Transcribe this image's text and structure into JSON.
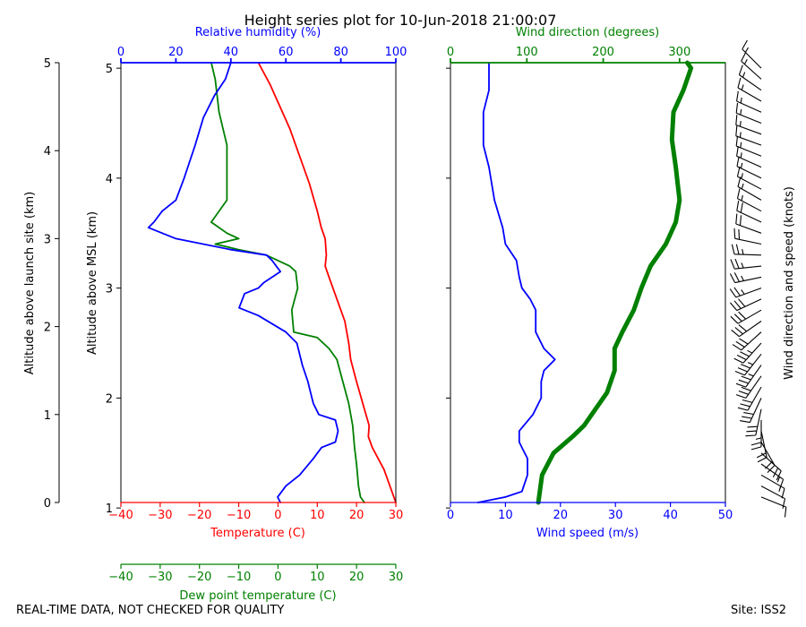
{
  "footer": {
    "quality_note": "REAL-TIME DATA, NOT CHECKED FOR QUALITY",
    "site": "Site: ISS2"
  },
  "colors": {
    "temperature": "#ff0000",
    "dewpoint": "#008000",
    "humidity": "#0000ff",
    "wind_speed": "#0000ff",
    "wind_direction": "#008000",
    "barbs": "#000000"
  },
  "chart_data": [
    {
      "type": "line",
      "title": "Height series plot for 10-Jun-2018 21:00:07",
      "ylabel": "Altitude above MSL (km)",
      "ylim": [
        1.05,
        5.05
      ],
      "yticks": [
        1,
        2,
        3,
        4,
        5
      ],
      "ylabel_outer": "Altitude above launch site (km)",
      "ylim_outer": [
        0,
        5
      ],
      "yticks_outer": [
        0,
        1,
        2,
        3,
        4,
        5
      ],
      "axes": {
        "temperature": {
          "label": "Temperature (C)",
          "lim": [
            -40,
            30
          ],
          "ticks": [
            -40,
            -30,
            -20,
            -10,
            0,
            10,
            20,
            30
          ]
        },
        "dewpoint": {
          "label": "Dew point temperature (C)",
          "lim": [
            -40,
            30
          ],
          "ticks": [
            -40,
            -30,
            -20,
            -10,
            0,
            10,
            20,
            30
          ]
        },
        "humidity": {
          "label": "Relative humidity (%)",
          "lim": [
            0,
            100
          ],
          "ticks": [
            0,
            20,
            40,
            60,
            80,
            100
          ]
        }
      },
      "series": [
        {
          "name": "Temperature",
          "axis": "temperature",
          "points": [
            [
              30,
              1.05
            ],
            [
              27,
              1.35
            ],
            [
              24,
              1.55
            ],
            [
              23,
              1.65
            ],
            [
              23.2,
              1.75
            ],
            [
              22,
              1.9
            ],
            [
              20,
              2.15
            ],
            [
              18.5,
              2.35
            ],
            [
              18,
              2.5
            ],
            [
              17,
              2.7
            ],
            [
              15,
              2.9
            ],
            [
              13,
              3.1
            ],
            [
              12,
              3.2
            ],
            [
              12.3,
              3.3
            ],
            [
              12,
              3.45
            ],
            [
              11,
              3.55
            ],
            [
              10,
              3.7
            ],
            [
              8,
              3.95
            ],
            [
              3,
              4.45
            ],
            [
              -2,
              4.85
            ],
            [
              -5,
              5.05
            ]
          ]
        },
        {
          "name": "Dew point",
          "axis": "dewpoint",
          "points": [
            [
              22,
              1.05
            ],
            [
              21,
              1.1
            ],
            [
              20.5,
              1.2
            ],
            [
              20,
              1.4
            ],
            [
              19.5,
              1.55
            ],
            [
              19,
              1.75
            ],
            [
              18,
              1.95
            ],
            [
              16.5,
              2.15
            ],
            [
              15,
              2.35
            ],
            [
              13,
              2.45
            ],
            [
              10,
              2.55
            ],
            [
              4,
              2.6
            ],
            [
              3.5,
              2.8
            ],
            [
              5,
              3.0
            ],
            [
              4.5,
              3.15
            ],
            [
              3,
              3.2
            ],
            [
              -3,
              3.3
            ],
            [
              -10,
              3.35
            ],
            [
              -16,
              3.4
            ],
            [
              -10,
              3.45
            ],
            [
              -13,
              3.5
            ],
            [
              -17,
              3.6
            ],
            [
              -13,
              3.8
            ],
            [
              -13,
              4.3
            ],
            [
              -15,
              4.6
            ],
            [
              -16,
              4.9
            ],
            [
              -17,
              5.05
            ]
          ]
        },
        {
          "name": "Relative humidity",
          "axis": "humidity",
          "points": [
            [
              58,
              1.05
            ],
            [
              57,
              1.1
            ],
            [
              60,
              1.2
            ],
            [
              65,
              1.3
            ],
            [
              70,
              1.45
            ],
            [
              73,
              1.55
            ],
            [
              78,
              1.6
            ],
            [
              79,
              1.7
            ],
            [
              78,
              1.8
            ],
            [
              72,
              1.85
            ],
            [
              70,
              1.95
            ],
            [
              69,
              2.05
            ],
            [
              68,
              2.15
            ],
            [
              66,
              2.3
            ],
            [
              64,
              2.5
            ],
            [
              60,
              2.6
            ],
            [
              50,
              2.75
            ],
            [
              43,
              2.82
            ],
            [
              45,
              2.95
            ],
            [
              50,
              3.0
            ],
            [
              52,
              3.05
            ],
            [
              58,
              3.15
            ],
            [
              55,
              3.25
            ],
            [
              53,
              3.3
            ],
            [
              40,
              3.35
            ],
            [
              20,
              3.45
            ],
            [
              15,
              3.5
            ],
            [
              10,
              3.55
            ],
            [
              12,
              3.6
            ],
            [
              15,
              3.7
            ],
            [
              20,
              3.8
            ],
            [
              23,
              4.0
            ],
            [
              27,
              4.3
            ],
            [
              30,
              4.55
            ],
            [
              34,
              4.75
            ],
            [
              38,
              4.9
            ],
            [
              40,
              5.05
            ]
          ]
        }
      ]
    },
    {
      "type": "line",
      "ylim": [
        1.05,
        5.05
      ],
      "axes": {
        "wind_speed": {
          "label": "Wind speed (m/s)",
          "lim": [
            0,
            50
          ],
          "ticks": [
            0,
            10,
            20,
            30,
            40,
            50
          ]
        },
        "wind_direction": {
          "label": "Wind direction (degrees)",
          "lim": [
            0,
            360
          ],
          "ticks": [
            0,
            100,
            200,
            300
          ]
        }
      },
      "series": [
        {
          "name": "Wind speed",
          "axis": "wind_speed",
          "points": [
            [
              5,
              1.05
            ],
            [
              10,
              1.1
            ],
            [
              13,
              1.15
            ],
            [
              14,
              1.3
            ],
            [
              14,
              1.45
            ],
            [
              13,
              1.55
            ],
            [
              12.5,
              1.6
            ],
            [
              12.5,
              1.7
            ],
            [
              15,
              1.85
            ],
            [
              16.5,
              2.0
            ],
            [
              16.5,
              2.15
            ],
            [
              17,
              2.25
            ],
            [
              19,
              2.35
            ],
            [
              17,
              2.45
            ],
            [
              15.5,
              2.6
            ],
            [
              15.5,
              2.8
            ],
            [
              14.5,
              2.9
            ],
            [
              13,
              3.0
            ],
            [
              12.5,
              3.1
            ],
            [
              12,
              3.25
            ],
            [
              10,
              3.4
            ],
            [
              9.5,
              3.55
            ],
            [
              8,
              3.8
            ],
            [
              7,
              4.1
            ],
            [
              6,
              4.3
            ],
            [
              6,
              4.6
            ],
            [
              7,
              4.8
            ],
            [
              7,
              5.05
            ]
          ]
        },
        {
          "name": "Wind direction",
          "axis": "wind_direction",
          "points": [
            [
              115,
              1.05
            ],
            [
              120,
              1.3
            ],
            [
              135,
              1.5
            ],
            [
              160,
              1.65
            ],
            [
              175,
              1.75
            ],
            [
              190,
              1.9
            ],
            [
              205,
              2.05
            ],
            [
              215,
              2.25
            ],
            [
              215,
              2.45
            ],
            [
              225,
              2.6
            ],
            [
              240,
              2.8
            ],
            [
              250,
              3.0
            ],
            [
              262,
              3.2
            ],
            [
              282,
              3.4
            ],
            [
              295,
              3.6
            ],
            [
              300,
              3.8
            ],
            [
              295,
              4.1
            ],
            [
              290,
              4.35
            ],
            [
              292,
              4.6
            ],
            [
              305,
              4.8
            ],
            [
              315,
              5.0
            ],
            [
              310,
              5.05
            ]
          ]
        }
      ]
    },
    {
      "type": "barbs",
      "label": "Wind direction and speed (knots)",
      "ylim": [
        1.05,
        5.05
      ],
      "barbs": [
        [
          1.1,
          112,
          10
        ],
        [
          1.2,
          118,
          10
        ],
        [
          1.3,
          120,
          15
        ],
        [
          1.4,
          125,
          15
        ],
        [
          1.5,
          132,
          20
        ],
        [
          1.6,
          150,
          20
        ],
        [
          1.7,
          168,
          20
        ],
        [
          1.8,
          180,
          25
        ],
        [
          1.9,
          192,
          30
        ],
        [
          2.0,
          205,
          30
        ],
        [
          2.1,
          210,
          30
        ],
        [
          2.2,
          215,
          30
        ],
        [
          2.3,
          215,
          35
        ],
        [
          2.4,
          218,
          35
        ],
        [
          2.5,
          222,
          35
        ],
        [
          2.6,
          228,
          30
        ],
        [
          2.7,
          235,
          30
        ],
        [
          2.8,
          240,
          30
        ],
        [
          2.9,
          245,
          30
        ],
        [
          3.0,
          250,
          25
        ],
        [
          3.1,
          258,
          25
        ],
        [
          3.2,
          264,
          25
        ],
        [
          3.3,
          272,
          25
        ],
        [
          3.4,
          282,
          20
        ],
        [
          3.5,
          290,
          20
        ],
        [
          3.6,
          295,
          20
        ],
        [
          3.7,
          298,
          15
        ],
        [
          3.8,
          300,
          15
        ],
        [
          3.9,
          298,
          15
        ],
        [
          4.0,
          296,
          15
        ],
        [
          4.1,
          294,
          15
        ],
        [
          4.2,
          292,
          15
        ],
        [
          4.3,
          290,
          15
        ],
        [
          4.4,
          290,
          15
        ],
        [
          4.5,
          292,
          15
        ],
        [
          4.6,
          294,
          15
        ],
        [
          4.7,
          300,
          15
        ],
        [
          4.8,
          305,
          15
        ],
        [
          4.9,
          312,
          15
        ],
        [
          5.0,
          315,
          15
        ]
      ]
    }
  ]
}
